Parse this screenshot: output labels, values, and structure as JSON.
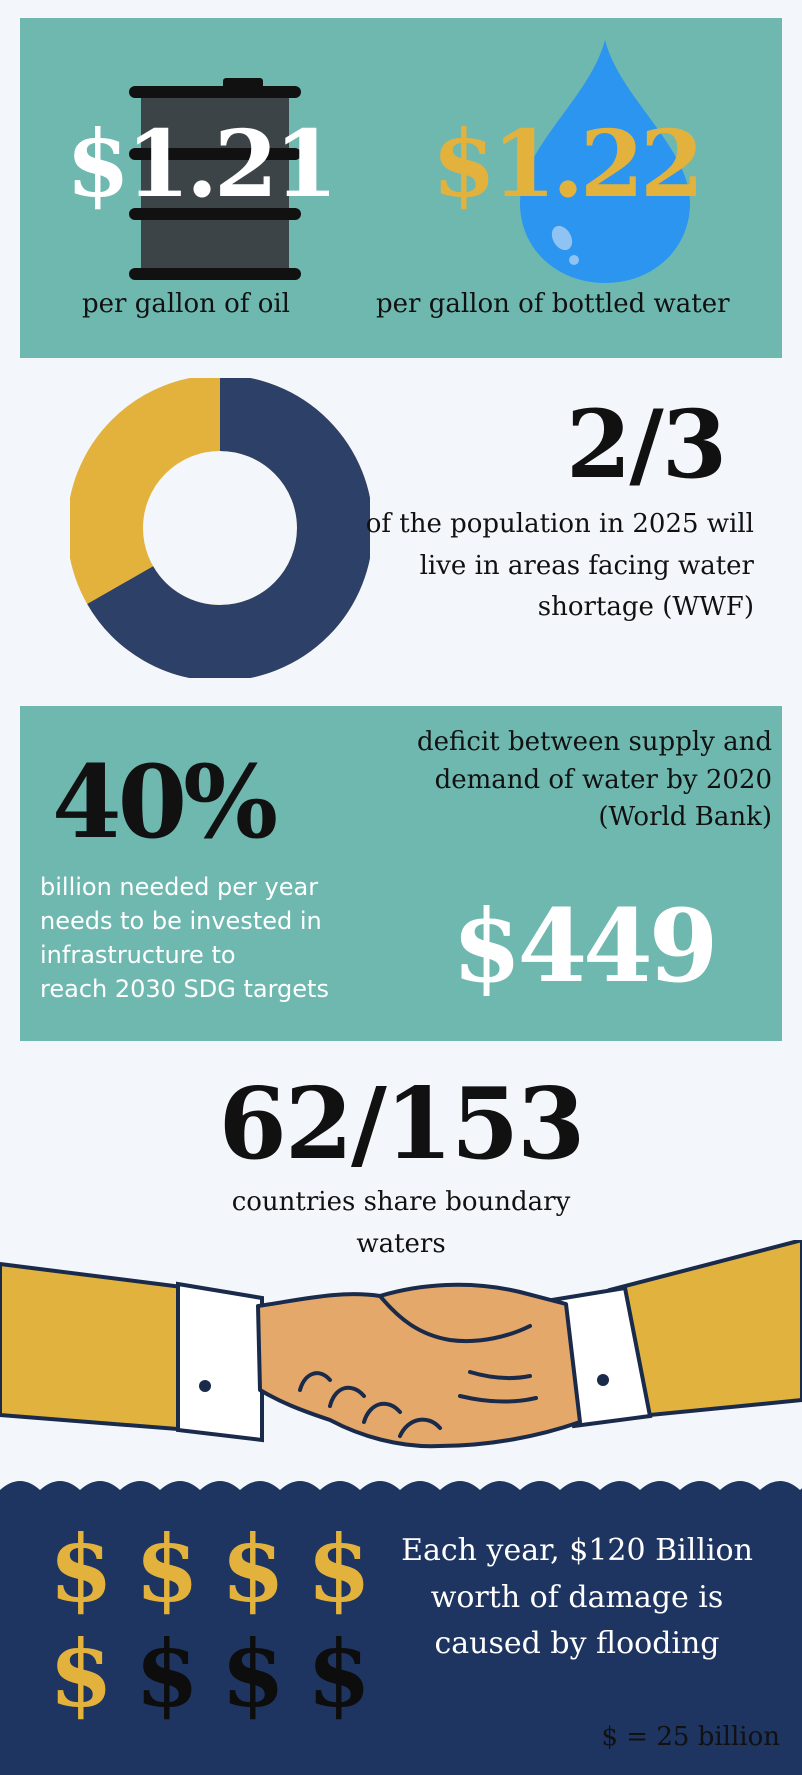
{
  "colors": {
    "teal": "#6fb8b0",
    "navy": "#1e3461",
    "ring_navy": "#2c4068",
    "gold": "#e3b23c",
    "water_blue": "#2b95f0",
    "barrel_gray": "#3d4448",
    "suit_gold": "#e1b33e",
    "skin": "#e3a86a"
  },
  "prices": {
    "oil": {
      "value": "$1.21",
      "caption": "per gallon of oil",
      "icon": "oil-barrel-icon"
    },
    "water": {
      "value": "$1.22",
      "caption": "per gallon of bottled water",
      "icon": "water-drop-icon"
    }
  },
  "shortage": {
    "fraction": "2/3",
    "caption_lines": [
      "of the population in 2025 will",
      "live in areas facing water",
      "shortage (WWF)"
    ],
    "ring_fill_fraction": 0.667
  },
  "deficit": {
    "value": "40%",
    "caption_lines": [
      "deficit between supply and",
      "demand of water by 2020",
      "(World Bank)"
    ]
  },
  "investment": {
    "value": "$449",
    "caption_lines": [
      "billion needed per year",
      "needs to be invested in",
      "infrastructure to",
      "reach 2030 SDG targets"
    ]
  },
  "boundary": {
    "value": "62/153",
    "caption_lines": [
      "countries share boundary",
      "waters"
    ],
    "icon": "handshake-icon"
  },
  "flooding": {
    "caption_lines": [
      "Each year, $120 Billion",
      "worth of damage is",
      "caused by flooding"
    ],
    "legend": "$ = 25 billion",
    "symbol": "$",
    "gold_count": 5,
    "total_count": 8
  }
}
